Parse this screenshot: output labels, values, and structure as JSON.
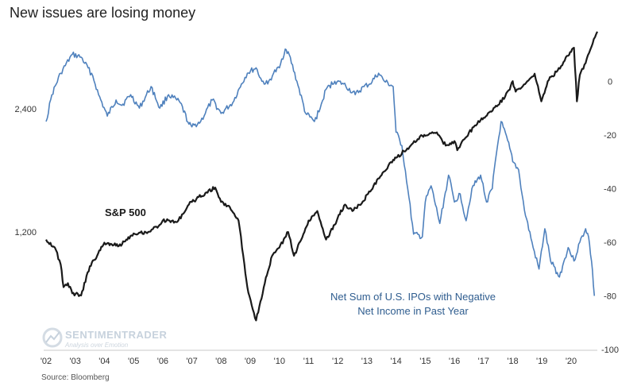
{
  "title": "New issues are losing money",
  "source": "Source: Bloomberg",
  "watermark": {
    "main": "SENTIMENTRADER",
    "sub": "Analysis over Emotion"
  },
  "colors": {
    "sp500": "#1a1a1a",
    "ipo": "#4f81bd",
    "ipo_label": "#2f5d8f"
  },
  "chart_data": {
    "type": "line",
    "title": "New issues are losing money",
    "x_tick_labels": [
      "'02",
      "'03",
      "'04",
      "'05",
      "'06",
      "'07",
      "'08",
      "'09",
      "'10",
      "'11",
      "'12",
      "'13",
      "'14",
      "'15",
      "'16",
      "'17",
      "'18",
      "'19",
      "'20"
    ],
    "x_range": [
      2002.0,
      2020.9
    ],
    "y_left": {
      "scale": "log",
      "range": [
        620,
        3900
      ],
      "tick_labels": [
        "1,200",
        "2,400"
      ],
      "tick_values": [
        1200,
        2400
      ]
    },
    "y_right": {
      "scale": "linear",
      "range": [
        -100,
        22
      ],
      "tick_labels": [
        "0",
        "-20",
        "-40",
        "-60",
        "-80",
        "-100"
      ],
      "tick_values": [
        0,
        -20,
        -40,
        -60,
        -80,
        -100
      ]
    },
    "grid": false,
    "series": [
      {
        "name": "S&P 500",
        "axis": "left",
        "x": [
          2002.0,
          2002.3,
          2002.5,
          2002.6,
          2002.75,
          2002.9,
          2003.2,
          2003.5,
          2003.75,
          2004.0,
          2004.25,
          2004.5,
          2004.75,
          2005.0,
          2005.5,
          2005.9,
          2006.0,
          2006.5,
          2006.9,
          2007.0,
          2007.5,
          2007.8,
          2008.0,
          2008.3,
          2008.6,
          2008.8,
          2008.9,
          2009.2,
          2009.5,
          2009.75,
          2010.0,
          2010.3,
          2010.5,
          2010.75,
          2011.0,
          2011.3,
          2011.6,
          2011.9,
          2012.0,
          2012.25,
          2012.5,
          2012.9,
          2013.0,
          2013.5,
          2013.9,
          2014.0,
          2014.5,
          2014.9,
          2015.0,
          2015.4,
          2015.7,
          2016.0,
          2016.1,
          2016.5,
          2016.9,
          2017.0,
          2017.5,
          2017.9,
          2018.0,
          2018.1,
          2018.5,
          2018.75,
          2018.98,
          2019.2,
          2019.5,
          2019.9,
          2020.0,
          2020.1,
          2020.2,
          2020.3,
          2020.5,
          2020.7,
          2020.9
        ],
        "y": [
          1150,
          1100,
          1000,
          880,
          900,
          850,
          840,
          990,
          1050,
          1130,
          1120,
          1110,
          1150,
          1190,
          1200,
          1250,
          1280,
          1270,
          1400,
          1420,
          1500,
          1540,
          1420,
          1380,
          1280,
          1000,
          880,
          730,
          900,
          1050,
          1100,
          1200,
          1050,
          1150,
          1280,
          1350,
          1150,
          1250,
          1300,
          1400,
          1350,
          1430,
          1480,
          1650,
          1800,
          1820,
          1950,
          2060,
          2060,
          2100,
          1950,
          2000,
          1900,
          2100,
          2250,
          2280,
          2450,
          2670,
          2800,
          2640,
          2800,
          2920,
          2500,
          2800,
          2950,
          3230,
          3300,
          3380,
          2500,
          2900,
          3100,
          3400,
          3700
        ]
      },
      {
        "name": "Net Sum of U.S. IPOs with Negative Net Income in Past Year",
        "axis": "right",
        "x": [
          2002.0,
          2002.2,
          2002.5,
          2002.9,
          2003.2,
          2003.6,
          2003.8,
          2004.1,
          2004.4,
          2004.6,
          2004.9,
          2005.2,
          2005.6,
          2005.9,
          2006.2,
          2006.6,
          2006.9,
          2007.0,
          2007.3,
          2007.7,
          2008.0,
          2008.4,
          2008.7,
          2008.9,
          2009.2,
          2009.4,
          2009.6,
          2009.8,
          2010.0,
          2010.2,
          2010.3,
          2010.6,
          2010.9,
          2011.2,
          2011.4,
          2011.6,
          2011.9,
          2012.2,
          2012.6,
          2012.9,
          2013.1,
          2013.4,
          2013.6,
          2013.9,
          2014.0,
          2014.2,
          2014.4,
          2014.6,
          2014.9,
          2015.0,
          2015.2,
          2015.5,
          2015.8,
          2016.0,
          2016.2,
          2016.4,
          2016.6,
          2016.9,
          2017.1,
          2017.3,
          2017.4,
          2017.6,
          2017.9,
          2018.0,
          2018.2,
          2018.4,
          2018.7,
          2018.9,
          2019.1,
          2019.3,
          2019.6,
          2019.9,
          2020.1,
          2020.3,
          2020.5,
          2020.6,
          2020.7,
          2020.8
        ],
        "y": [
          -15,
          -5,
          3,
          10,
          9,
          2,
          -5,
          -13,
          -7,
          -9,
          -5,
          -10,
          -2,
          -10,
          -5,
          -8,
          -16,
          -17,
          -15,
          -7,
          -12,
          -8,
          -1,
          3,
          5,
          0,
          -1,
          3,
          5,
          12,
          11,
          0,
          -12,
          -15,
          -10,
          -3,
          0,
          -1,
          -5,
          -2,
          -1,
          3,
          0,
          -2,
          -19,
          -24,
          -40,
          -57,
          -58,
          -45,
          -39,
          -53,
          -35,
          -45,
          -42,
          -52,
          -40,
          -35,
          -45,
          -40,
          -30,
          -15,
          -25,
          -30,
          -33,
          -48,
          -62,
          -70,
          -55,
          -67,
          -73,
          -62,
          -67,
          -60,
          -55,
          -58,
          -67,
          -80
        ]
      }
    ],
    "annotations": [
      {
        "text": "S&P 500",
        "series": "S&P 500"
      },
      {
        "text": "Net Sum of U.S. IPOs with Negative",
        "series": "ipo"
      },
      {
        "text": "Net Income in Past Year",
        "series": "ipo"
      }
    ]
  }
}
